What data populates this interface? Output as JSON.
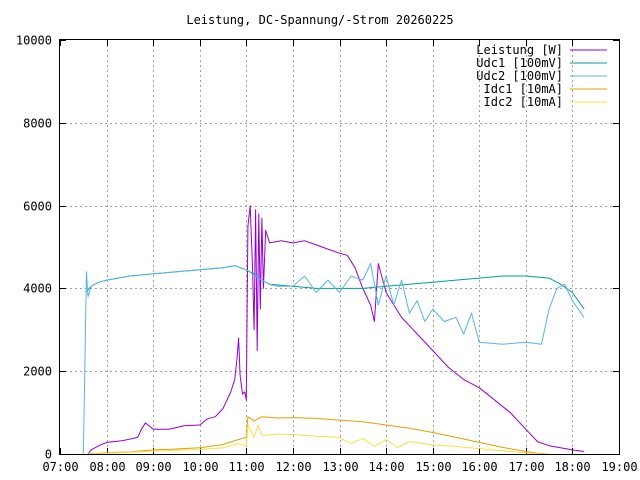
{
  "chart_data": {
    "type": "line",
    "title": "Leistung, DC-Spannung/-Strom 20260225",
    "xlabel": "",
    "ylabel": "",
    "xlim": [
      "07:00",
      "19:00"
    ],
    "ylim": [
      0,
      10000
    ],
    "x_ticks": [
      "07:00",
      "08:00",
      "09:00",
      "10:00",
      "11:00",
      "12:00",
      "13:00",
      "14:00",
      "15:00",
      "16:00",
      "17:00",
      "18:00",
      "19:00"
    ],
    "y_ticks": [
      "0",
      "2000",
      "4000",
      "6000",
      "8000",
      "10000"
    ],
    "grid": true,
    "legend_position": "top-right",
    "series": [
      {
        "name": "Leistung [W]",
        "color": "#9400d3",
        "points": [
          [
            "07:36",
            0
          ],
          [
            "07:40",
            100
          ],
          [
            "07:50",
            200
          ],
          [
            "08:00",
            280
          ],
          [
            "08:20",
            320
          ],
          [
            "08:40",
            400
          ],
          [
            "08:45",
            600
          ],
          [
            "08:50",
            750
          ],
          [
            "09:00",
            600
          ],
          [
            "09:20",
            600
          ],
          [
            "09:40",
            680
          ],
          [
            "10:00",
            700
          ],
          [
            "10:10",
            850
          ],
          [
            "10:20",
            900
          ],
          [
            "10:25",
            1000
          ],
          [
            "10:30",
            1100
          ],
          [
            "10:35",
            1300
          ],
          [
            "10:40",
            1500
          ],
          [
            "10:45",
            1800
          ],
          [
            "10:48",
            2300
          ],
          [
            "10:50",
            2800
          ],
          [
            "10:52",
            1900
          ],
          [
            "10:55",
            1450
          ],
          [
            "10:58",
            1500
          ],
          [
            "11:00",
            1300
          ],
          [
            "11:02",
            5500
          ],
          [
            "11:05",
            6000
          ],
          [
            "11:08",
            4500
          ],
          [
            "11:10",
            3000
          ],
          [
            "11:12",
            5900
          ],
          [
            "11:14",
            2500
          ],
          [
            "11:16",
            5800
          ],
          [
            "11:18",
            3500
          ],
          [
            "11:20",
            5700
          ],
          [
            "11:22",
            4000
          ],
          [
            "11:25",
            5400
          ],
          [
            "11:30",
            5100
          ],
          [
            "11:45",
            5150
          ],
          [
            "12:00",
            5100
          ],
          [
            "12:15",
            5150
          ],
          [
            "12:30",
            5050
          ],
          [
            "12:45",
            4950
          ],
          [
            "13:00",
            4850
          ],
          [
            "13:10",
            4800
          ],
          [
            "13:20",
            4500
          ],
          [
            "13:30",
            4000
          ],
          [
            "13:40",
            3600
          ],
          [
            "13:45",
            3200
          ],
          [
            "13:50",
            4600
          ],
          [
            "14:00",
            3900
          ],
          [
            "14:10",
            3600
          ],
          [
            "14:20",
            3300
          ],
          [
            "14:30",
            3100
          ],
          [
            "14:40",
            2900
          ],
          [
            "15:00",
            2500
          ],
          [
            "15:10",
            2300
          ],
          [
            "15:20",
            2100
          ],
          [
            "15:40",
            1800
          ],
          [
            "16:00",
            1600
          ],
          [
            "16:20",
            1300
          ],
          [
            "16:40",
            1000
          ],
          [
            "17:00",
            600
          ],
          [
            "17:15",
            300
          ],
          [
            "17:30",
            200
          ],
          [
            "18:00",
            100
          ],
          [
            "18:15",
            60
          ]
        ]
      },
      {
        "name": "Udc1 [100mV]",
        "color": "#009e9e",
        "points": [
          [
            "07:33",
            3900
          ],
          [
            "07:40",
            4050
          ],
          [
            "07:50",
            4150
          ],
          [
            "08:00",
            4200
          ],
          [
            "08:30",
            4300
          ],
          [
            "09:00",
            4350
          ],
          [
            "09:30",
            4400
          ],
          [
            "10:00",
            4450
          ],
          [
            "10:30",
            4500
          ],
          [
            "10:45",
            4550
          ],
          [
            "11:00",
            4450
          ],
          [
            "11:10",
            4350
          ],
          [
            "11:20",
            4200
          ],
          [
            "11:30",
            4100
          ],
          [
            "12:00",
            4050
          ],
          [
            "12:30",
            4000
          ],
          [
            "13:00",
            4000
          ],
          [
            "13:30",
            4000
          ],
          [
            "14:00",
            4050
          ],
          [
            "14:30",
            4100
          ],
          [
            "15:00",
            4150
          ],
          [
            "15:30",
            4200
          ],
          [
            "16:00",
            4250
          ],
          [
            "16:30",
            4300
          ],
          [
            "17:00",
            4300
          ],
          [
            "17:30",
            4250
          ],
          [
            "17:45",
            4100
          ],
          [
            "18:00",
            3900
          ],
          [
            "18:15",
            3500
          ]
        ]
      },
      {
        "name": "Udc2 [100mV]",
        "color": "#56b4e9",
        "points": [
          [
            "07:30",
            0
          ],
          [
            "07:32",
            2000
          ],
          [
            "07:34",
            4400
          ],
          [
            "07:36",
            3800
          ],
          [
            "07:40",
            4050
          ],
          [
            "07:50",
            4150
          ],
          [
            "08:00",
            4200
          ],
          [
            "08:30",
            4300
          ],
          [
            "09:00",
            4350
          ],
          [
            "09:30",
            4400
          ],
          [
            "10:00",
            4450
          ],
          [
            "10:30",
            4500
          ],
          [
            "10:45",
            4550
          ],
          [
            "11:00",
            4450
          ],
          [
            "11:20",
            4200
          ],
          [
            "11:30",
            4100
          ],
          [
            "11:40",
            4050
          ],
          [
            "12:00",
            4050
          ],
          [
            "12:15",
            4300
          ],
          [
            "12:30",
            3900
          ],
          [
            "12:45",
            4200
          ],
          [
            "13:00",
            3900
          ],
          [
            "13:15",
            4300
          ],
          [
            "13:30",
            4200
          ],
          [
            "13:40",
            4600
          ],
          [
            "13:50",
            3600
          ],
          [
            "14:00",
            4300
          ],
          [
            "14:10",
            3600
          ],
          [
            "14:20",
            4200
          ],
          [
            "14:30",
            3400
          ],
          [
            "14:40",
            3700
          ],
          [
            "14:50",
            3200
          ],
          [
            "15:00",
            3500
          ],
          [
            "15:15",
            3200
          ],
          [
            "15:30",
            3300
          ],
          [
            "15:40",
            2900
          ],
          [
            "15:50",
            3400
          ],
          [
            "16:00",
            2700
          ],
          [
            "16:30",
            2650
          ],
          [
            "17:00",
            2700
          ],
          [
            "17:20",
            2650
          ],
          [
            "17:30",
            3500
          ],
          [
            "17:40",
            4000
          ],
          [
            "17:50",
            4100
          ],
          [
            "18:00",
            3700
          ],
          [
            "18:15",
            3300
          ]
        ]
      },
      {
        "name": "Idc1 [10mA]",
        "color": "#e69f00",
        "points": [
          [
            "07:36",
            0
          ],
          [
            "08:00",
            30
          ],
          [
            "08:30",
            50
          ],
          [
            "09:00",
            100
          ],
          [
            "09:30",
            120
          ],
          [
            "10:00",
            150
          ],
          [
            "10:30",
            230
          ],
          [
            "10:50",
            350
          ],
          [
            "11:00",
            400
          ],
          [
            "11:02",
            900
          ],
          [
            "11:10",
            800
          ],
          [
            "11:20",
            900
          ],
          [
            "11:40",
            870
          ],
          [
            "12:00",
            880
          ],
          [
            "12:30",
            860
          ],
          [
            "13:00",
            820
          ],
          [
            "13:30",
            780
          ],
          [
            "14:00",
            700
          ],
          [
            "14:30",
            620
          ],
          [
            "15:00",
            520
          ],
          [
            "15:30",
            400
          ],
          [
            "16:00",
            280
          ],
          [
            "16:30",
            160
          ],
          [
            "17:00",
            60
          ],
          [
            "17:15",
            20
          ],
          [
            "17:30",
            0
          ]
        ]
      },
      {
        "name": "Idc2 [10mA]",
        "color": "#f0e442",
        "points": [
          [
            "07:36",
            0
          ],
          [
            "08:00",
            20
          ],
          [
            "08:30",
            40
          ],
          [
            "09:00",
            70
          ],
          [
            "09:30",
            90
          ],
          [
            "10:00",
            110
          ],
          [
            "10:30",
            150
          ],
          [
            "10:50",
            250
          ],
          [
            "11:00",
            200
          ],
          [
            "11:02",
            700
          ],
          [
            "11:10",
            400
          ],
          [
            "11:15",
            700
          ],
          [
            "11:20",
            450
          ],
          [
            "11:40",
            480
          ],
          [
            "12:00",
            470
          ],
          [
            "12:30",
            430
          ],
          [
            "13:00",
            400
          ],
          [
            "13:15",
            250
          ],
          [
            "13:30",
            380
          ],
          [
            "13:45",
            180
          ],
          [
            "14:00",
            350
          ],
          [
            "14:15",
            160
          ],
          [
            "14:30",
            300
          ],
          [
            "15:00",
            220
          ],
          [
            "15:30",
            180
          ],
          [
            "16:00",
            130
          ],
          [
            "16:30",
            80
          ],
          [
            "17:00",
            30
          ],
          [
            "17:15",
            10
          ],
          [
            "17:30",
            0
          ]
        ]
      }
    ]
  }
}
